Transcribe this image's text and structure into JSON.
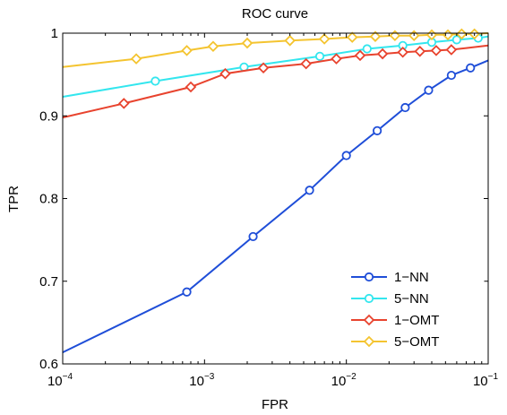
{
  "chart_data": {
    "type": "line",
    "title": "ROC curve",
    "xlabel": "FPR",
    "ylabel": "TPR",
    "xscale": "log",
    "xlim": [
      0.0001,
      0.1
    ],
    "ylim": [
      0.6,
      1.0
    ],
    "xticks": [
      {
        "value": 0.0001,
        "base": "10",
        "exp": "−4"
      },
      {
        "value": 0.001,
        "base": "10",
        "exp": "−3"
      },
      {
        "value": 0.01,
        "base": "10",
        "exp": "−2"
      },
      {
        "value": 0.1,
        "base": "10",
        "exp": "−1"
      }
    ],
    "yticks": [
      {
        "value": 0.6,
        "label": "0.6"
      },
      {
        "value": 0.7,
        "label": "0.7"
      },
      {
        "value": 0.8,
        "label": "0.8"
      },
      {
        "value": 0.9,
        "label": "0.9"
      },
      {
        "value": 1.0,
        "label": "1"
      }
    ],
    "grid": false,
    "legend_position": "bottom-right",
    "series": [
      {
        "name": "1−NN",
        "color": "#1f4ed8",
        "marker": "circle",
        "line": [
          [
            0.0001,
            0.614
          ],
          [
            0.00075,
            0.687
          ],
          [
            0.0022,
            0.754
          ],
          [
            0.0055,
            0.81
          ],
          [
            0.01,
            0.852
          ],
          [
            0.0165,
            0.882
          ],
          [
            0.026,
            0.91
          ],
          [
            0.038,
            0.931
          ],
          [
            0.055,
            0.949
          ],
          [
            0.075,
            0.958
          ],
          [
            0.1,
            0.967
          ]
        ],
        "markers": [
          [
            0.00075,
            0.687
          ],
          [
            0.0022,
            0.754
          ],
          [
            0.0055,
            0.81
          ],
          [
            0.01,
            0.852
          ],
          [
            0.0165,
            0.882
          ],
          [
            0.026,
            0.91
          ],
          [
            0.038,
            0.931
          ],
          [
            0.055,
            0.949
          ],
          [
            0.075,
            0.958
          ]
        ]
      },
      {
        "name": "5−NN",
        "color": "#33e6ee",
        "marker": "circle",
        "line": [
          [
            0.0001,
            0.923
          ],
          [
            0.00045,
            0.942
          ],
          [
            0.0019,
            0.959
          ],
          [
            0.0065,
            0.972
          ],
          [
            0.014,
            0.981
          ],
          [
            0.025,
            0.985
          ],
          [
            0.04,
            0.989
          ],
          [
            0.06,
            0.992
          ],
          [
            0.085,
            0.994
          ],
          [
            0.1,
            0.996
          ]
        ],
        "markers": [
          [
            0.00045,
            0.942
          ],
          [
            0.0019,
            0.959
          ],
          [
            0.0065,
            0.972
          ],
          [
            0.014,
            0.981
          ],
          [
            0.025,
            0.985
          ],
          [
            0.04,
            0.989
          ],
          [
            0.06,
            0.992
          ],
          [
            0.085,
            0.994
          ]
        ]
      },
      {
        "name": "1−OMT",
        "color": "#e8432e",
        "marker": "diamond",
        "line": [
          [
            0.0001,
            0.898
          ],
          [
            0.00027,
            0.915
          ],
          [
            0.0008,
            0.935
          ],
          [
            0.0014,
            0.951
          ],
          [
            0.0026,
            0.958
          ],
          [
            0.0052,
            0.963
          ],
          [
            0.0085,
            0.969
          ],
          [
            0.0125,
            0.973
          ],
          [
            0.018,
            0.975
          ],
          [
            0.025,
            0.977
          ],
          [
            0.033,
            0.978
          ],
          [
            0.043,
            0.979
          ],
          [
            0.055,
            0.98
          ],
          [
            0.07,
            0.982
          ],
          [
            0.1,
            0.985
          ]
        ],
        "markers": [
          [
            0.00027,
            0.915
          ],
          [
            0.0008,
            0.935
          ],
          [
            0.0014,
            0.951
          ],
          [
            0.0026,
            0.958
          ],
          [
            0.0052,
            0.963
          ],
          [
            0.0085,
            0.969
          ],
          [
            0.0125,
            0.973
          ],
          [
            0.018,
            0.975
          ],
          [
            0.025,
            0.977
          ],
          [
            0.033,
            0.978
          ],
          [
            0.043,
            0.979
          ],
          [
            0.055,
            0.98
          ]
        ]
      },
      {
        "name": "5−OMT",
        "color": "#f4c430",
        "marker": "diamond",
        "line": [
          [
            0.0001,
            0.959
          ],
          [
            0.00033,
            0.969
          ],
          [
            0.00075,
            0.979
          ],
          [
            0.00115,
            0.984
          ],
          [
            0.002,
            0.988
          ],
          [
            0.004,
            0.991
          ],
          [
            0.007,
            0.993
          ],
          [
            0.011,
            0.995
          ],
          [
            0.016,
            0.996
          ],
          [
            0.022,
            0.997
          ],
          [
            0.03,
            0.997
          ],
          [
            0.04,
            0.998
          ],
          [
            0.052,
            0.998
          ],
          [
            0.065,
            0.999
          ],
          [
            0.08,
            0.999
          ],
          [
            0.1,
            1.0
          ]
        ],
        "markers": [
          [
            0.00033,
            0.969
          ],
          [
            0.00075,
            0.979
          ],
          [
            0.00115,
            0.984
          ],
          [
            0.002,
            0.988
          ],
          [
            0.004,
            0.991
          ],
          [
            0.007,
            0.993
          ],
          [
            0.011,
            0.995
          ],
          [
            0.016,
            0.996
          ],
          [
            0.022,
            0.997
          ],
          [
            0.03,
            0.997
          ],
          [
            0.04,
            0.998
          ],
          [
            0.052,
            0.998
          ],
          [
            0.065,
            0.999
          ],
          [
            0.08,
            0.999
          ]
        ]
      }
    ]
  }
}
